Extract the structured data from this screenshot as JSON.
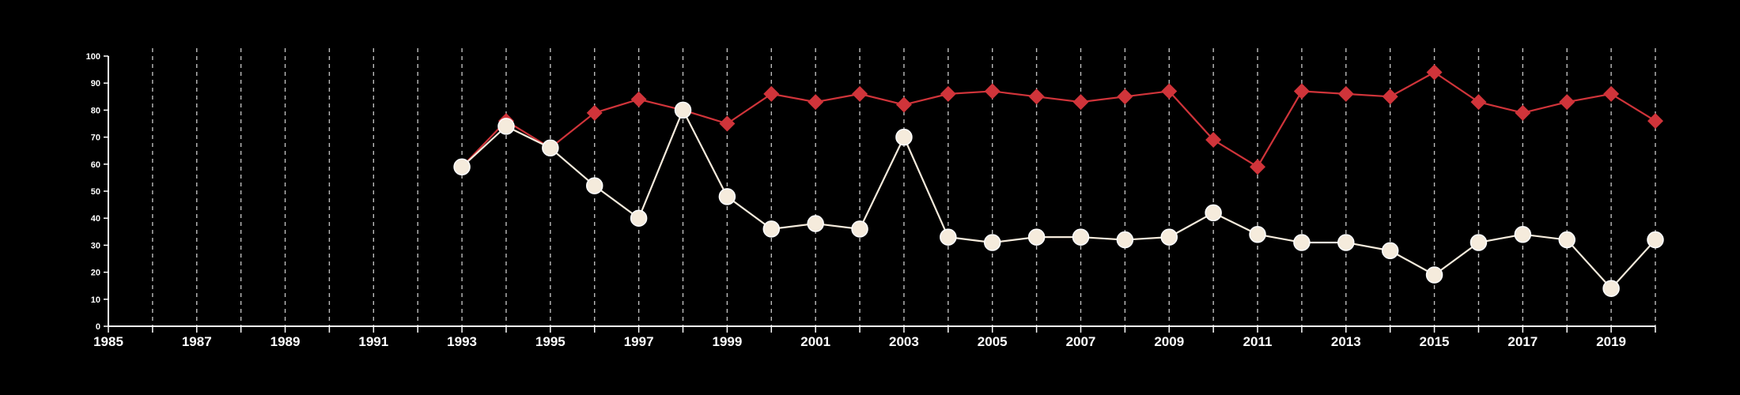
{
  "chart_data": {
    "type": "line",
    "title": "",
    "xlabel": "",
    "ylabel": "",
    "xlim": [
      1985,
      2020
    ],
    "ylim": [
      0,
      100
    ],
    "x_ticks": [
      "1985",
      "1987",
      "1989",
      "1991",
      "1993",
      "1995",
      "1997",
      "1999",
      "2001",
      "2003",
      "2005",
      "2007",
      "2009",
      "2011",
      "2013",
      "2015",
      "2017",
      "2019"
    ],
    "y_ticks": [
      "0",
      "10",
      "20",
      "30",
      "40",
      "50",
      "60",
      "70",
      "80",
      "90",
      "100"
    ],
    "grid": "vertical dashed lines at every year",
    "legend": "none",
    "x": [
      1993,
      1994,
      1995,
      1996,
      1997,
      1998,
      1999,
      2000,
      2001,
      2002,
      2003,
      2004,
      2005,
      2006,
      2007,
      2008,
      2009,
      2010,
      2011,
      2012,
      2013,
      2014,
      2015,
      2016,
      2017,
      2018,
      2019,
      2020
    ],
    "series": [
      {
        "color": "#d0343a",
        "marker": "diamond",
        "values": [
          59,
          76,
          66,
          79,
          84,
          80,
          75,
          86,
          83,
          86,
          82,
          86,
          87,
          85,
          83,
          85,
          87,
          69,
          59,
          87,
          86,
          85,
          94,
          83,
          79,
          83,
          86,
          76
        ]
      },
      {
        "color": "#f5ebdc",
        "marker": "circle",
        "values": [
          59,
          74,
          66,
          52,
          40,
          80,
          48,
          36,
          38,
          36,
          70,
          33,
          31,
          33,
          33,
          32,
          33,
          42,
          34,
          31,
          31,
          28,
          19,
          31,
          34,
          32,
          14,
          32
        ]
      }
    ]
  }
}
